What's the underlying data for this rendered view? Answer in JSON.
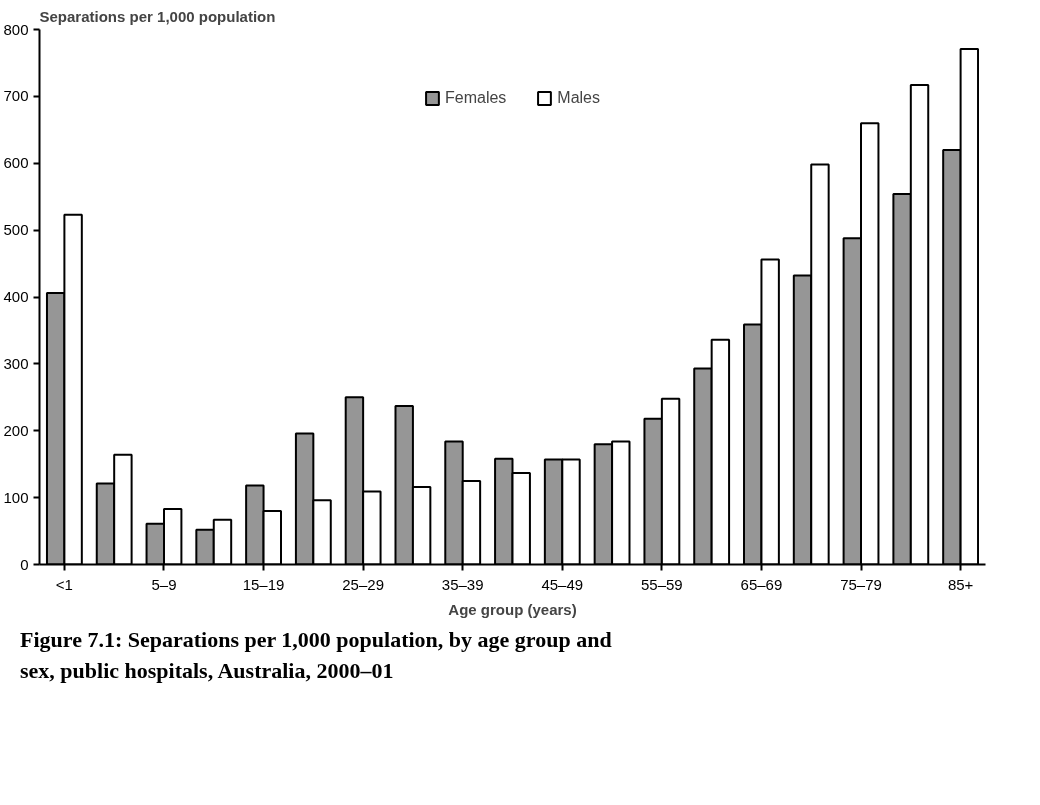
{
  "chart_data": {
    "type": "bar",
    "categories": [
      "<1",
      null,
      "5–9",
      null,
      "15–19",
      null,
      "25–29",
      null,
      "35–39",
      null,
      "45–49",
      null,
      "55–59",
      null,
      "65–69",
      null,
      "75–79",
      null,
      "85+"
    ],
    "series": [
      {
        "name": "Females",
        "color": "#969696",
        "values": [
          406,
          121,
          61,
          52,
          118,
          196,
          250,
          237,
          184,
          158,
          157,
          180,
          218,
          293,
          359,
          432,
          488,
          554,
          620
        ]
      },
      {
        "name": "Males",
        "color": "#ffffff",
        "values": [
          523,
          164,
          83,
          67,
          80,
          96,
          109,
          116,
          125,
          137,
          157,
          184,
          248,
          336,
          456,
          598,
          660,
          717,
          771
        ]
      }
    ],
    "ylabel": "Separations per 1,000 population",
    "xlabel": "Age group (years)",
    "ylim": [
      0,
      800
    ],
    "yticks": [
      0,
      100,
      200,
      300,
      400,
      500,
      600,
      700,
      800
    ],
    "legend": "top",
    "annotations": [
      "Figure 7.1: Separations per 1,000 population, by age group and sex, public hospitals, Australia, 2000–01"
    ]
  }
}
